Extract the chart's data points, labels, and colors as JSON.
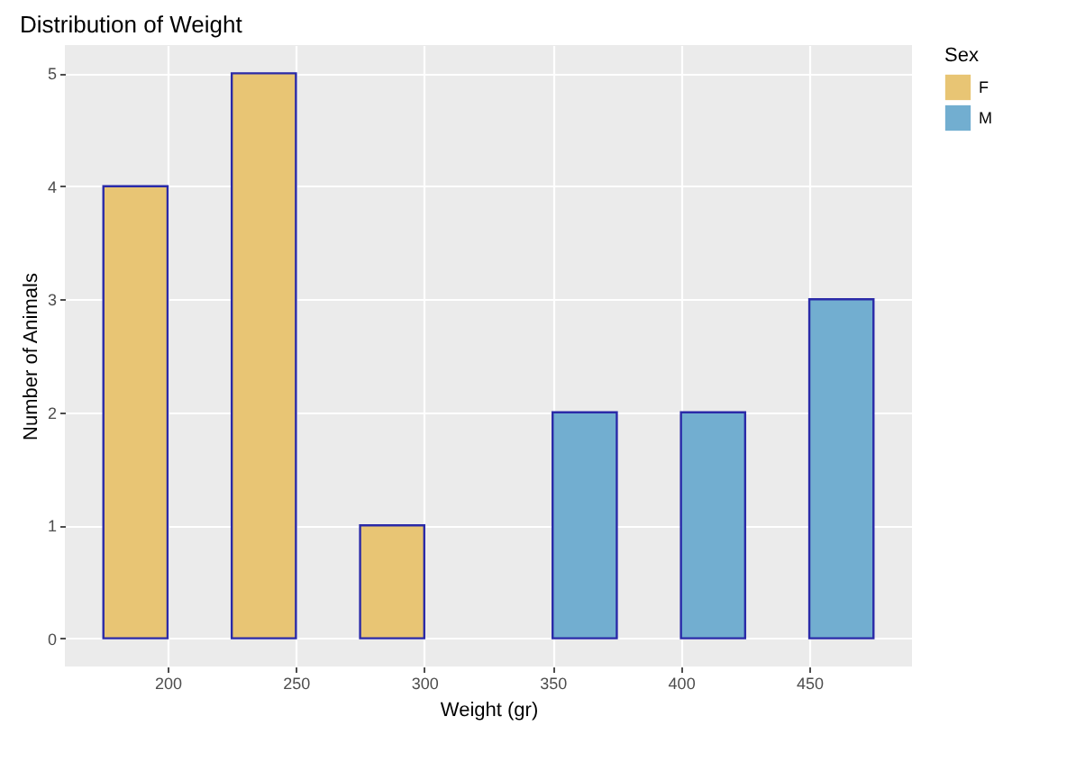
{
  "chart_data": {
    "type": "histogram",
    "title": "Distribution of Weight",
    "xlabel": "Weight (gr)",
    "ylabel": "Number of Animals",
    "legend_title": "Sex",
    "bins": [
      175,
      200,
      225,
      250,
      275,
      300,
      325,
      350,
      375,
      400,
      425,
      450,
      475
    ],
    "series": [
      {
        "name": "F",
        "color": "#e8c574",
        "values": [
          4,
          0,
          5,
          0,
          1,
          0,
          0,
          0,
          0,
          0,
          0,
          0
        ]
      },
      {
        "name": "M",
        "color": "#72aed0",
        "values": [
          0,
          0,
          0,
          0,
          0,
          0,
          0,
          2,
          0,
          2,
          0,
          3
        ]
      }
    ],
    "xlim": [
      160,
      490
    ],
    "xticks": [
      200,
      250,
      300,
      350,
      400,
      450
    ],
    "ylim": [
      -0.25,
      5.25
    ],
    "yticks": [
      0,
      1,
      2,
      3,
      4,
      5
    ],
    "grid": true,
    "legend": "right"
  }
}
